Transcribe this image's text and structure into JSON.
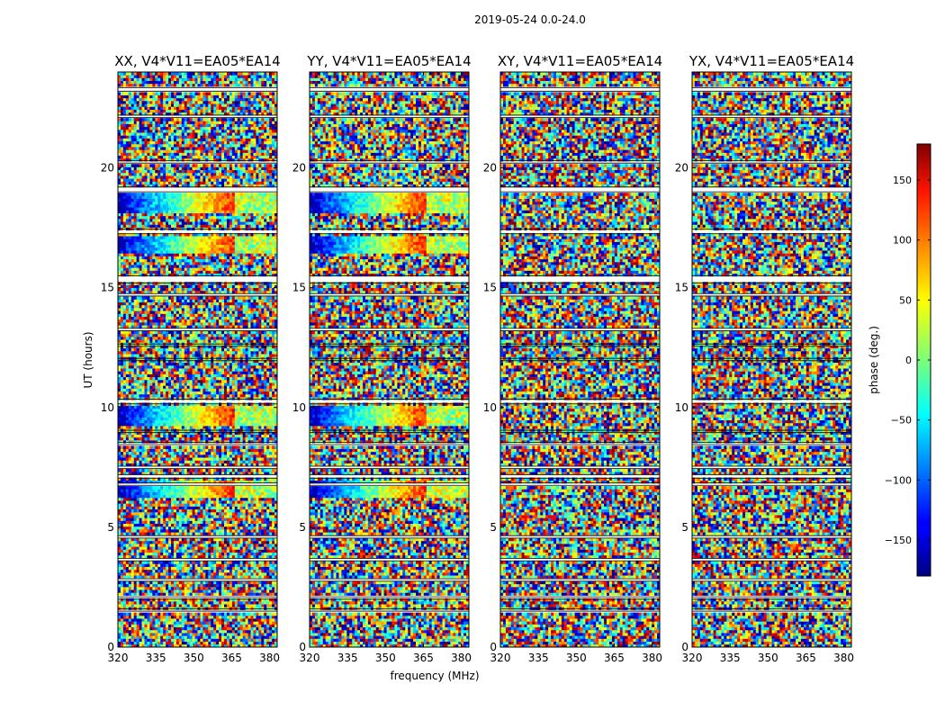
{
  "figure": {
    "suptitle": "2019-05-24 0.0-24.0"
  },
  "chart_data": {
    "type": "heatmap",
    "title": "2019-05-24 0.0-24.0",
    "xlabel": "frequency (MHz)",
    "ylabel": "UT (hours)",
    "xlim": [
      320,
      383
    ],
    "ylim": [
      0,
      24
    ],
    "xticks": [
      "320",
      "335",
      "350",
      "365",
      "380"
    ],
    "yticks": [
      "0",
      "5",
      "10",
      "15",
      "20"
    ],
    "panels": [
      {
        "name": "XX",
        "title": "XX, V4*V11=EA05*EA14",
        "calibrator_phase_slope": true
      },
      {
        "name": "YY",
        "title": "YY, V4*V11=EA05*EA14",
        "calibrator_phase_slope": true
      },
      {
        "name": "XY",
        "title": "XY, V4*V11=EA05*EA14",
        "calibrator_phase_slope": false
      },
      {
        "name": "YX",
        "title": "YX, V4*V11=EA05*EA14",
        "calibrator_phase_slope": false
      }
    ],
    "colorbar": {
      "label": "phase (deg.)",
      "colormap": "jet",
      "vmin": -180,
      "vmax": 180,
      "ticks": [
        "150",
        "100",
        "50",
        "0",
        "−50",
        "−100",
        "−150"
      ],
      "tick_values": [
        150,
        100,
        50,
        0,
        -50,
        -100,
        -150
      ]
    },
    "flagged_time_bands_hours": [
      [
        23.2,
        23.35
      ],
      [
        22.1,
        22.2
      ],
      [
        20.2,
        20.3
      ],
      [
        19.0,
        19.2
      ],
      [
        17.25,
        17.45
      ],
      [
        15.2,
        15.5
      ],
      [
        14.65,
        14.75
      ],
      [
        13.2,
        13.3
      ],
      [
        12.55,
        12.65
      ],
      [
        11.95,
        12.05
      ],
      [
        10.15,
        10.35
      ],
      [
        8.95,
        9.05
      ],
      [
        8.45,
        8.55
      ],
      [
        7.45,
        7.55
      ],
      [
        7.05,
        7.2
      ],
      [
        6.75,
        6.85
      ],
      [
        4.55,
        4.65
      ],
      [
        3.6,
        3.7
      ],
      [
        2.75,
        2.85
      ],
      [
        2.0,
        2.1
      ],
      [
        1.5,
        1.6
      ]
    ],
    "calibrator_scans_hours": [
      [
        18.1,
        19.0
      ],
      [
        16.5,
        17.1
      ],
      [
        9.3,
        10.1
      ],
      [
        6.3,
        7.0
      ]
    ]
  }
}
